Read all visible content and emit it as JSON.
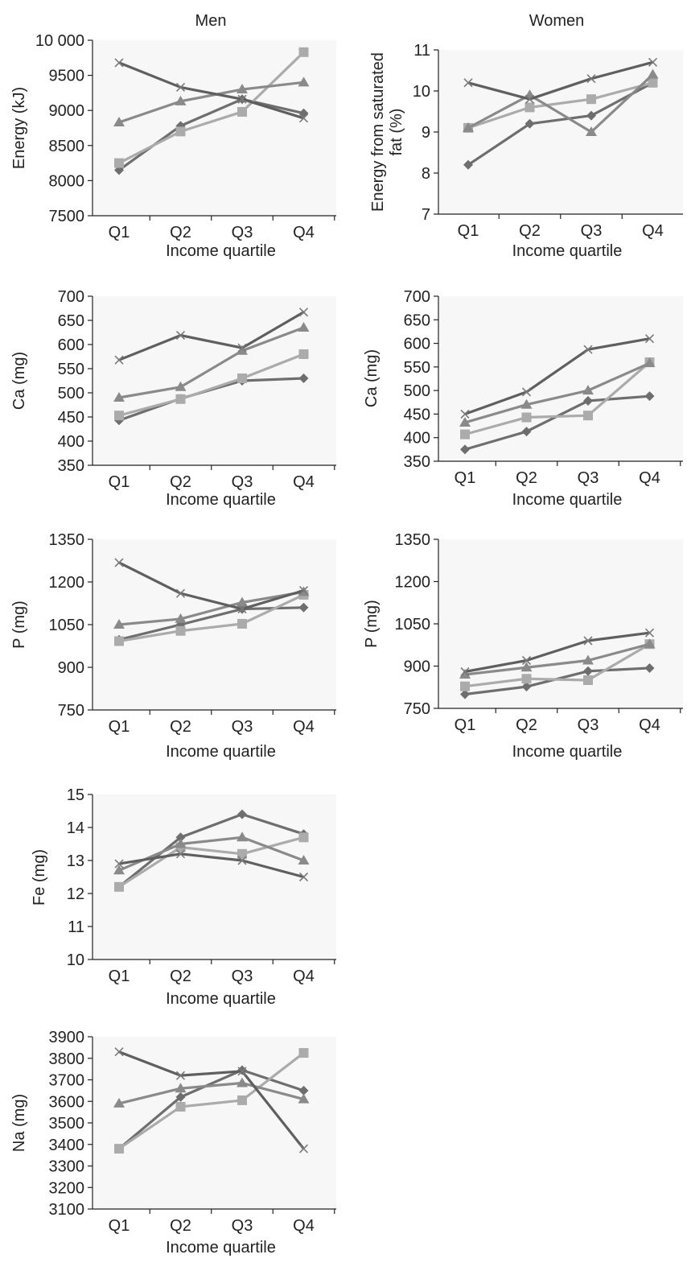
{
  "column_titles": [
    "Men",
    "Women"
  ],
  "colors": {
    "Diamond": "#6e6e6e",
    "Square": "#ababab",
    "Triangle": "#8a8a8a",
    "Cross": "#5f5f5f"
  },
  "chart_data": [
    {
      "type": "line",
      "categories": [
        "Q1",
        "Q2",
        "Q3",
        "Q4"
      ],
      "xlabel": "Income quartile",
      "ylabel": "Energy (kJ)",
      "ylim": [
        7500,
        10000
      ],
      "yticks": [
        "7500",
        "8000",
        "8500",
        "9000",
        "9500",
        "10 000"
      ],
      "ytick_values": [
        7500,
        8000,
        8500,
        9000,
        9500,
        10000
      ],
      "series": [
        {
          "marker": "Diamond",
          "values": [
            8150,
            8780,
            9160,
            8960
          ]
        },
        {
          "marker": "Square",
          "values": [
            8250,
            8700,
            8980,
            9830
          ]
        },
        {
          "marker": "Triangle",
          "values": [
            8830,
            9130,
            9300,
            9400
          ]
        },
        {
          "marker": "Cross",
          "values": [
            9680,
            9330,
            9160,
            8890
          ]
        }
      ]
    },
    {
      "type": "line",
      "categories": [
        "Q1",
        "Q2",
        "Q3",
        "Q4"
      ],
      "xlabel": "Income quartile",
      "ylabel": "Energy from saturated fat (%)",
      "ylim": [
        7,
        11
      ],
      "yticks": [
        "7",
        "8",
        "9",
        "10",
        "11"
      ],
      "ytick_values": [
        7,
        8,
        9,
        10,
        11
      ],
      "series": [
        {
          "marker": "Diamond",
          "values": [
            8.2,
            9.2,
            9.4,
            10.2
          ]
        },
        {
          "marker": "Square",
          "values": [
            9.1,
            9.6,
            9.8,
            10.2
          ]
        },
        {
          "marker": "Triangle",
          "values": [
            9.1,
            9.9,
            9.0,
            10.4
          ]
        },
        {
          "marker": "Cross",
          "values": [
            10.2,
            9.8,
            10.3,
            10.7
          ]
        }
      ]
    },
    {
      "type": "line",
      "categories": [
        "Q1",
        "Q2",
        "Q3",
        "Q4"
      ],
      "xlabel": "Income quartile",
      "ylabel": "Ca (mg)",
      "ylim": [
        350,
        700
      ],
      "yticks": [
        "350",
        "400",
        "450",
        "500",
        "550",
        "600",
        "650",
        "700"
      ],
      "ytick_values": [
        350,
        400,
        450,
        500,
        550,
        600,
        650,
        700
      ],
      "series": [
        {
          "marker": "Diamond",
          "values": [
            443,
            488,
            525,
            530
          ]
        },
        {
          "marker": "Square",
          "values": [
            453,
            487,
            530,
            580
          ]
        },
        {
          "marker": "Triangle",
          "values": [
            490,
            512,
            587,
            635
          ]
        },
        {
          "marker": "Cross",
          "values": [
            568,
            619,
            593,
            667
          ]
        }
      ]
    },
    {
      "type": "line",
      "categories": [
        "Q1",
        "Q2",
        "Q3",
        "Q4"
      ],
      "xlabel": "Income quartile",
      "ylabel": "Ca (mg)",
      "ylim": [
        350,
        700
      ],
      "yticks": [
        "350",
        "400",
        "450",
        "500",
        "550",
        "600",
        "650",
        "700"
      ],
      "ytick_values": [
        350,
        400,
        450,
        500,
        550,
        600,
        650,
        700
      ],
      "series": [
        {
          "marker": "Diamond",
          "values": [
            375,
            413,
            478,
            488
          ]
        },
        {
          "marker": "Square",
          "values": [
            407,
            443,
            447,
            560
          ]
        },
        {
          "marker": "Triangle",
          "values": [
            432,
            470,
            500,
            558
          ]
        },
        {
          "marker": "Cross",
          "values": [
            450,
            497,
            587,
            610
          ]
        }
      ]
    },
    {
      "type": "line",
      "categories": [
        "Q1",
        "Q2",
        "Q3",
        "Q4"
      ],
      "xlabel": "Income quartile",
      "ylabel": "P (mg)",
      "ylim": [
        750,
        1350
      ],
      "yticks": [
        "750",
        "900",
        "1050",
        "1200",
        "1350"
      ],
      "ytick_values": [
        750,
        900,
        1050,
        1200,
        1350
      ],
      "series": [
        {
          "marker": "Diamond",
          "values": [
            997,
            1050,
            1105,
            1110
          ]
        },
        {
          "marker": "Square",
          "values": [
            992,
            1028,
            1053,
            1155
          ]
        },
        {
          "marker": "Triangle",
          "values": [
            1050,
            1070,
            1128,
            1165
          ]
        },
        {
          "marker": "Cross",
          "values": [
            1268,
            1160,
            1105,
            1170
          ]
        }
      ]
    },
    {
      "type": "line",
      "categories": [
        "Q1",
        "Q2",
        "Q3",
        "Q4"
      ],
      "xlabel": "Income quartile",
      "ylabel": "P (mg)",
      "ylim": [
        750,
        1350
      ],
      "yticks": [
        "750",
        "900",
        "1050",
        "1200",
        "1350"
      ],
      "ytick_values": [
        750,
        900,
        1050,
        1200,
        1350
      ],
      "series": [
        {
          "marker": "Diamond",
          "values": [
            800,
            827,
            882,
            893
          ]
        },
        {
          "marker": "Square",
          "values": [
            828,
            855,
            850,
            978
          ]
        },
        {
          "marker": "Triangle",
          "values": [
            870,
            895,
            920,
            978
          ]
        },
        {
          "marker": "Cross",
          "values": [
            880,
            920,
            990,
            1018
          ]
        }
      ]
    },
    {
      "type": "line",
      "categories": [
        "Q1",
        "Q2",
        "Q3",
        "Q4"
      ],
      "xlabel": "Income quartile",
      "ylabel": "Fe (mg)",
      "ylim": [
        10,
        15
      ],
      "yticks": [
        "10",
        "11",
        "12",
        "13",
        "14",
        "15"
      ],
      "ytick_values": [
        10,
        11,
        12,
        13,
        14,
        15
      ],
      "series": [
        {
          "marker": "Diamond",
          "values": [
            12.2,
            13.7,
            14.4,
            13.8
          ]
        },
        {
          "marker": "Square",
          "values": [
            12.2,
            13.4,
            13.2,
            13.7
          ]
        },
        {
          "marker": "Triangle",
          "values": [
            12.7,
            13.5,
            13.7,
            13.0
          ]
        },
        {
          "marker": "Cross",
          "values": [
            12.9,
            13.2,
            13.0,
            12.5
          ]
        }
      ]
    },
    {
      "type": "line",
      "categories": [
        "Q1",
        "Q2",
        "Q3",
        "Q4"
      ],
      "xlabel": "Income quartile",
      "ylabel": "Na (mg)",
      "ylim": [
        3100,
        3900
      ],
      "yticks": [
        "3100",
        "3200",
        "3300",
        "3400",
        "3500",
        "3600",
        "3700",
        "3800",
        "3900"
      ],
      "ytick_values": [
        3100,
        3200,
        3300,
        3400,
        3500,
        3600,
        3700,
        3800,
        3900
      ],
      "series": [
        {
          "marker": "Diamond",
          "values": [
            3380,
            3620,
            3745,
            3650
          ]
        },
        {
          "marker": "Square",
          "values": [
            3380,
            3575,
            3605,
            3825
          ]
        },
        {
          "marker": "Triangle",
          "values": [
            3590,
            3660,
            3685,
            3610
          ]
        },
        {
          "marker": "Cross",
          "values": [
            3830,
            3720,
            3740,
            3380
          ]
        }
      ]
    }
  ]
}
